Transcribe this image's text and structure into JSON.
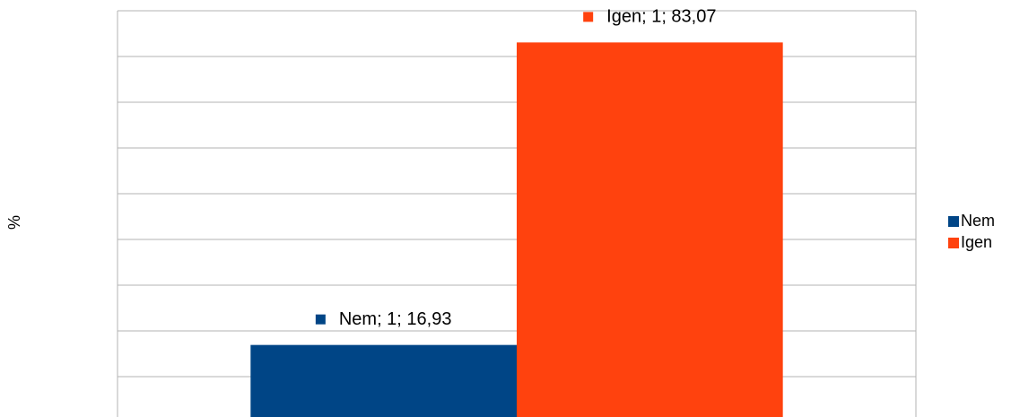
{
  "chart_data": {
    "type": "bar",
    "y_label": "%",
    "categories": [
      null
    ],
    "series": [
      {
        "name": "Nem",
        "color": "#004586",
        "values": [
          16.93
        ],
        "value_labels": [
          "Nem; 1; 16,93"
        ]
      },
      {
        "name": "Igen",
        "color": "#ff420e",
        "values": [
          83.07
        ],
        "value_labels": [
          "Igen; 1; 83,07"
        ]
      }
    ],
    "ylim": [
      0,
      90
    ],
    "yticks": [
      0,
      10,
      20,
      30,
      40,
      50,
      60,
      70,
      80,
      90
    ],
    "grid": true,
    "legend": "right"
  }
}
